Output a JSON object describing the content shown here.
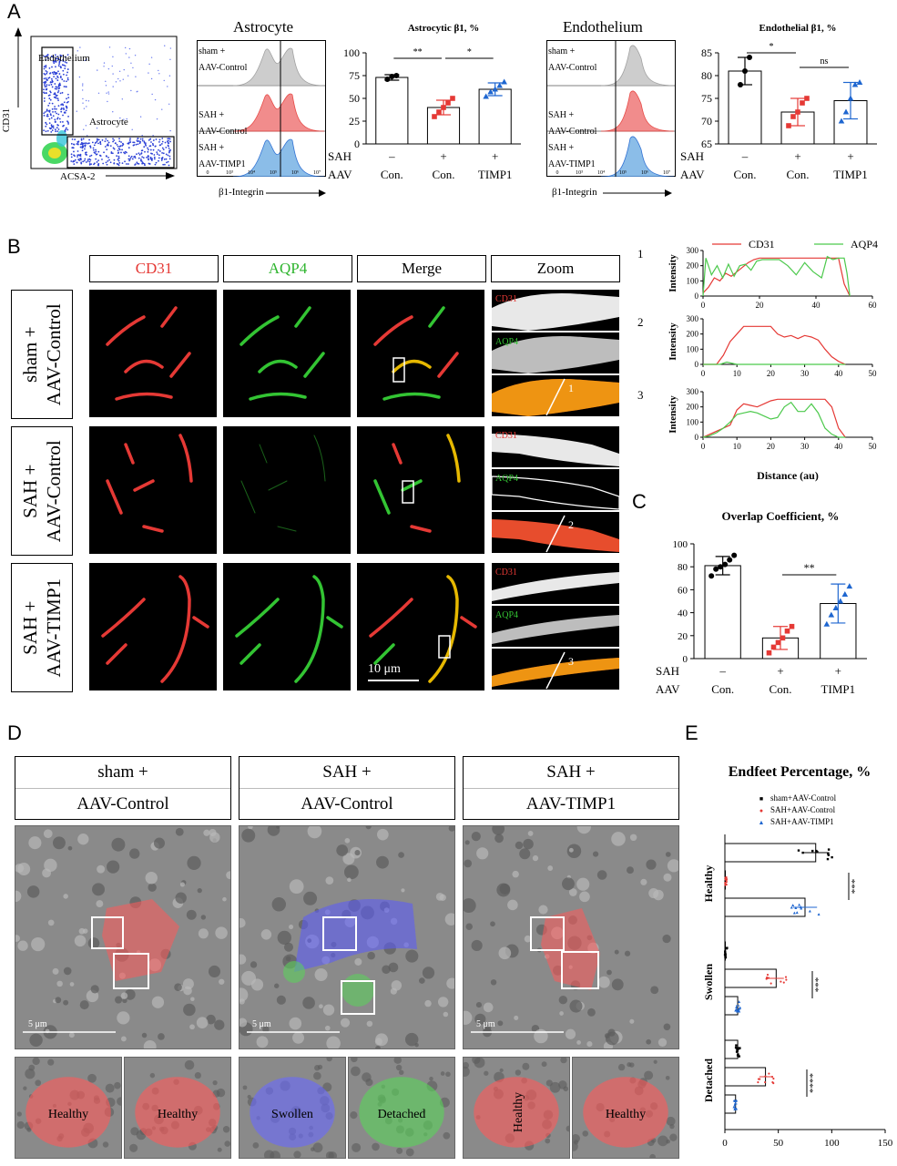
{
  "panels": {
    "A": "A",
    "B": "B",
    "C": "C",
    "D": "D",
    "E": "E"
  },
  "panelA": {
    "flow": {
      "y_label": "CD31",
      "x_label": "ACSA-2",
      "gate_endothelium": "Endothelium",
      "gate_astrocyte": "Astrocyte"
    },
    "astro_hist": {
      "title": "Astrocyte",
      "x_label": "β1-Integrin",
      "rows": [
        {
          "line1": "sham +",
          "line2": "AAV-Control",
          "color": "#c8c8c8"
        },
        {
          "line1": "SAH +",
          "line2": "AAV-Control",
          "color": "#f08080"
        },
        {
          "line1": "SAH +",
          "line2": "AAV-TIMP1",
          "color": "#7fb6e6"
        }
      ]
    },
    "endo_hist": {
      "title": "Endothelium",
      "x_label": "β1-Integrin",
      "rows": [
        {
          "line1": "sham +",
          "line2": "AAV-Control",
          "color": "#c8c8c8"
        },
        {
          "line1": "SAH +",
          "line2": "AAV-Control",
          "color": "#f08080"
        },
        {
          "line1": "SAH +",
          "line2": "AAV-TIMP1",
          "color": "#7fb6e6"
        }
      ]
    },
    "hist_ticks": [
      "0",
      "10³",
      "10⁴",
      "10⁵",
      "10⁶",
      "10⁷"
    ]
  },
  "chart_data": [
    {
      "type": "bar",
      "title": "Astrocytic β1, %",
      "categories": [
        "sham+AAV-Control",
        "SAH+AAV-Control",
        "SAH+AAV-TIMP1"
      ],
      "values": [
        73,
        40,
        60
      ],
      "errors": [
        3,
        8,
        7
      ],
      "ylim": [
        0,
        100
      ],
      "yticks": [
        "0",
        "25",
        "50",
        "75",
        "100"
      ],
      "points": [
        [
          71,
          74,
          75
        ],
        [
          30,
          35,
          40,
          45,
          50
        ],
        [
          52,
          57,
          60,
          64,
          68
        ]
      ],
      "colors": [
        "#000000",
        "#e53935",
        "#1e66d0"
      ],
      "sig": [
        {
          "from": 0,
          "to": 1,
          "label": "**"
        },
        {
          "from": 1,
          "to": 2,
          "label": "*"
        }
      ],
      "row1_label": "SAH",
      "row2_label": "AAV",
      "row1": [
        "–",
        "+",
        "+"
      ],
      "row2": [
        "Con.",
        "Con.",
        "TIMP1"
      ]
    },
    {
      "type": "bar",
      "title": "Endothelial β1, %",
      "categories": [
        "sham+AAV-Control",
        "SAH+AAV-Control",
        "SAH+AAV-TIMP1"
      ],
      "values": [
        81,
        72,
        74.5
      ],
      "errors": [
        3,
        3,
        4
      ],
      "ylim": [
        65,
        85
      ],
      "yticks": [
        "65",
        "70",
        "75",
        "80",
        "85"
      ],
      "points": [
        [
          78,
          81,
          84
        ],
        [
          69,
          71,
          72,
          74,
          75
        ],
        [
          70,
          72,
          75,
          78,
          78.5
        ]
      ],
      "colors": [
        "#000000",
        "#e53935",
        "#1e66d0"
      ],
      "sig": [
        {
          "from": 0,
          "to": 1,
          "label": "*"
        },
        {
          "from": 1,
          "to": 2,
          "label": "ns"
        }
      ],
      "row1_label": "SAH",
      "row2_label": "AAV",
      "row1": [
        "–",
        "+",
        "+"
      ],
      "row2": [
        "Con.",
        "Con.",
        "TIMP1"
      ]
    },
    {
      "type": "line",
      "y_label": "Intensity",
      "x_label": "Distance (au)",
      "legend": [
        {
          "name": "CD31",
          "color": "#e53935"
        },
        {
          "name": "AQP4",
          "color": "#4cc94c"
        }
      ],
      "plots": [
        {
          "id": "1",
          "xlim": [
            0,
            60
          ],
          "xticks": [
            "0",
            "20",
            "40",
            "60"
          ],
          "ylim": [
            0,
            300
          ],
          "yticks": [
            "0",
            "100",
            "200",
            "300"
          ],
          "series": [
            {
              "name": "CD31",
              "x": [
                0,
                2,
                4,
                6,
                8,
                10,
                12,
                14,
                16,
                18,
                20,
                25,
                30,
                35,
                40,
                45,
                48,
                50,
                52
              ],
              "y": [
                20,
                60,
                120,
                100,
                150,
                130,
                160,
                190,
                220,
                240,
                250,
                250,
                250,
                250,
                250,
                250,
                250,
                80,
                0
              ]
            },
            {
              "name": "AQP4",
              "x": [
                0,
                1,
                3,
                5,
                7,
                9,
                11,
                13,
                15,
                17,
                19,
                21,
                24,
                27,
                30,
                33,
                36,
                39,
                42,
                44,
                46,
                48,
                50,
                51,
                52
              ],
              "y": [
                0,
                250,
                140,
                200,
                120,
                210,
                130,
                200,
                210,
                170,
                230,
                240,
                240,
                240,
                200,
                140,
                220,
                160,
                120,
                260,
                240,
                250,
                250,
                150,
                0
              ]
            }
          ]
        },
        {
          "id": "2",
          "xlim": [
            0,
            50
          ],
          "xticks": [
            "0",
            "10",
            "20",
            "30",
            "40",
            "50"
          ],
          "ylim": [
            0,
            300
          ],
          "yticks": [
            "0",
            "100",
            "200",
            "300"
          ],
          "series": [
            {
              "name": "CD31",
              "x": [
                0,
                4,
                6,
                8,
                10,
                12,
                14,
                16,
                18,
                20,
                22,
                24,
                26,
                28,
                30,
                32,
                34,
                36,
                38,
                40,
                42
              ],
              "y": [
                0,
                0,
                60,
                150,
                200,
                250,
                250,
                250,
                250,
                250,
                200,
                180,
                190,
                170,
                190,
                180,
                160,
                100,
                50,
                20,
                0
              ]
            },
            {
              "name": "AQP4",
              "x": [
                0,
                5,
                7,
                10,
                42
              ],
              "y": [
                0,
                0,
                15,
                0,
                0
              ]
            }
          ]
        },
        {
          "id": "3",
          "xlim": [
            0,
            50
          ],
          "xticks": [
            "0",
            "10",
            "20",
            "30",
            "40",
            "50"
          ],
          "ylim": [
            0,
            300
          ],
          "yticks": [
            "0",
            "100",
            "200",
            "300"
          ],
          "series": [
            {
              "name": "CD31",
              "x": [
                0,
                2,
                4,
                6,
                8,
                10,
                12,
                14,
                16,
                18,
                20,
                22,
                24,
                26,
                28,
                30,
                32,
                34,
                36,
                38,
                40,
                42
              ],
              "y": [
                0,
                20,
                40,
                60,
                80,
                180,
                220,
                210,
                200,
                220,
                240,
                250,
                250,
                250,
                250,
                250,
                250,
                250,
                250,
                200,
                60,
                0
              ]
            },
            {
              "name": "AQP4",
              "x": [
                0,
                2,
                4,
                6,
                8,
                10,
                12,
                14,
                16,
                18,
                20,
                22,
                24,
                26,
                28,
                30,
                32,
                34,
                36,
                38,
                40,
                42
              ],
              "y": [
                0,
                10,
                30,
                60,
                100,
                150,
                160,
                170,
                160,
                140,
                120,
                130,
                200,
                230,
                170,
                170,
                220,
                160,
                60,
                20,
                0,
                0
              ]
            }
          ]
        }
      ]
    },
    {
      "type": "bar",
      "title": "Overlap Coefficient, %",
      "categories": [
        "sham+AAV-Control",
        "SAH+AAV-Control",
        "SAH+AAV-TIMP1"
      ],
      "values": [
        81,
        18,
        48
      ],
      "errors": [
        8,
        10,
        17
      ],
      "ylim": [
        0,
        100
      ],
      "yticks": [
        "0",
        "20",
        "40",
        "60",
        "80",
        "100"
      ],
      "points": [
        [
          72,
          78,
          80,
          82,
          86,
          90
        ],
        [
          5,
          10,
          14,
          18,
          24,
          28
        ],
        [
          30,
          38,
          44,
          50,
          56,
          63
        ]
      ],
      "colors": [
        "#000000",
        "#e53935",
        "#1e66d0"
      ],
      "sig": [
        {
          "from": 1,
          "to": 2,
          "label": "**"
        }
      ],
      "row1_label": "SAH",
      "row2_label": "AAV",
      "row1": [
        "–",
        "+",
        "+"
      ],
      "row2": [
        "Con.",
        "Con.",
        "TIMP1"
      ]
    },
    {
      "type": "bar",
      "orientation": "horizontal",
      "title": "Endfeet Percentage, %",
      "groups": [
        "Healthy",
        "Swollen",
        "Detached"
      ],
      "series": [
        {
          "name": "sham+AAV-Control",
          "color": "#000000",
          "marker": "■",
          "values": [
            85,
            0,
            12
          ]
        },
        {
          "name": "SAH+AAV-Control",
          "color": "#e53935",
          "marker": "●",
          "values": [
            0,
            48,
            38
          ]
        },
        {
          "name": "SAH+AAV-TIMP1",
          "color": "#1e66d0",
          "marker": "▲",
          "values": [
            75,
            12,
            10
          ]
        }
      ],
      "xlim": [
        0,
        150
      ],
      "xticks": [
        "0",
        "50",
        "100",
        "150"
      ],
      "sig": [
        {
          "group": 0,
          "label": "***"
        },
        {
          "group": 1,
          "label": "***"
        },
        {
          "group": 2,
          "label": "****"
        }
      ]
    }
  ],
  "panelB": {
    "headers": [
      "CD31",
      "AQP4",
      "Merge",
      "Zoom"
    ],
    "header_colors": [
      "#e53935",
      "#2fb52f",
      "#000000",
      "#000000"
    ],
    "rows": [
      {
        "line1": "sham +",
        "line2": "AAV-Control"
      },
      {
        "line1": "SAH +",
        "line2": "AAV-Control"
      },
      {
        "line1": "SAH +",
        "line2": "AAV-TIMP1"
      }
    ],
    "zoom_tags": {
      "cd31": "CD31",
      "aqp4": "AQP4"
    },
    "zoom_numbers": [
      "1",
      "2",
      "3"
    ],
    "scale_bar": "10 μm"
  },
  "panelD": {
    "headers": [
      {
        "line1": "sham +",
        "line2": "AAV-Control"
      },
      {
        "line1": "SAH +",
        "line2": "AAV-Control"
      },
      {
        "line1": "SAH +",
        "line2": "AAV-TIMP1"
      }
    ],
    "scale": "5 μm",
    "zoom_labels": [
      "Healthy",
      "Healthy",
      "Swollen",
      "Detached",
      "Healthy",
      "Healthy"
    ]
  }
}
